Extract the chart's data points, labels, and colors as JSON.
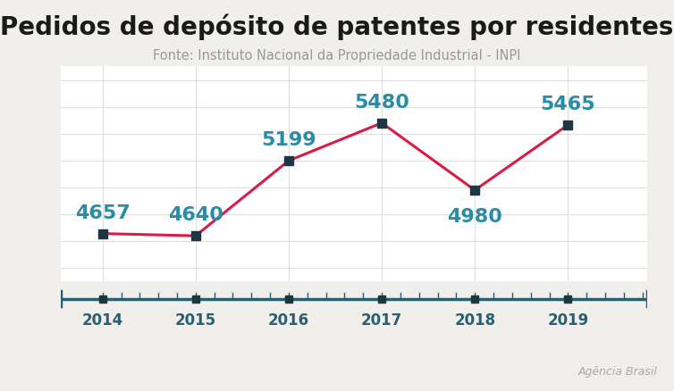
{
  "title": "Pedidos de depósito de patentes por residentes",
  "subtitle": "Fonte: Instituto Nacional da Propriedade Industrial - INPI",
  "credit": "Agência Brasil",
  "years": [
    2014,
    2015,
    2016,
    2017,
    2018,
    2019
  ],
  "values": [
    4657,
    4640,
    5199,
    5480,
    4980,
    5465
  ],
  "line_color": "#d91c47",
  "marker_color": "#1d3545",
  "label_color": "#2a8ca8",
  "title_color": "#1a1a1a",
  "subtitle_color": "#999999",
  "credit_color": "#aaaaaa",
  "axis_color": "#2a5f72",
  "bg_color": "#f0efeb",
  "plot_bg_color": "#ffffff",
  "grid_color": "#e0e0da",
  "title_fontsize": 20,
  "subtitle_fontsize": 10.5,
  "label_fontsize": 16,
  "xtick_fontsize": 12,
  "credit_fontsize": 9,
  "line_width": 2.2,
  "marker_size": 7,
  "ylim_min": 4300,
  "ylim_max": 5900,
  "label_offsets_y": [
    85,
    85,
    85,
    85,
    -135,
    85
  ]
}
